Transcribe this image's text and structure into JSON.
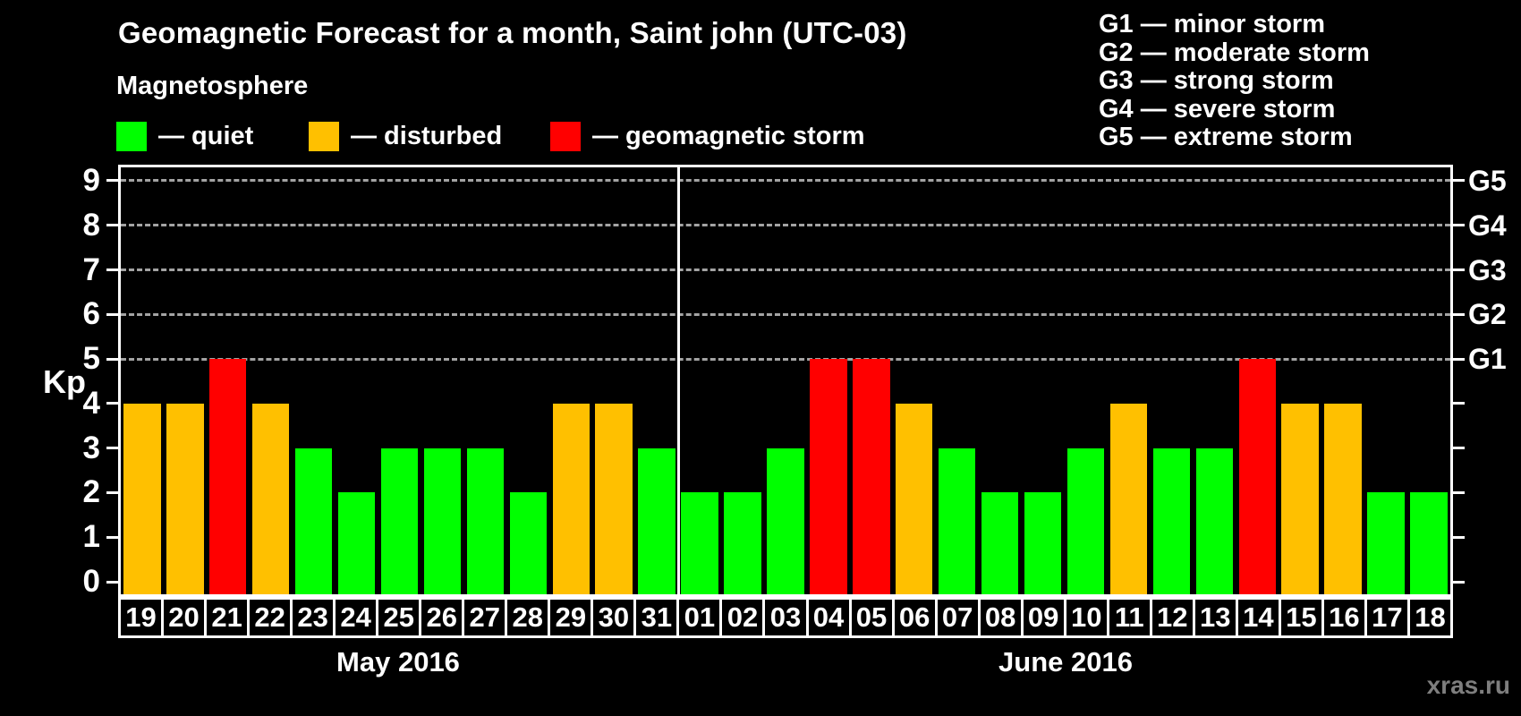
{
  "title": "Geomagnetic Forecast for a month, Saint john (UTC-03)",
  "subtitle": "Magnetosphere",
  "legend": {
    "items": [
      {
        "key": "quiet",
        "label": "— quiet",
        "color": "#00ff00"
      },
      {
        "key": "disturbed",
        "label": "— disturbed",
        "color": "#ffc000"
      },
      {
        "key": "storm",
        "label": "— geomagnetic storm",
        "color": "#ff0000"
      }
    ]
  },
  "g_legend": {
    "items": [
      {
        "code": "G1",
        "label": "minor storm"
      },
      {
        "code": "G2",
        "label": "moderate storm"
      },
      {
        "code": "G3",
        "label": "strong storm"
      },
      {
        "code": "G4",
        "label": "severe storm"
      },
      {
        "code": "G5",
        "label": "extreme storm"
      }
    ],
    "separator": "—"
  },
  "watermark": "xras.ru",
  "chart_data": {
    "type": "bar",
    "title": "Geomagnetic Forecast for a month, Saint john (UTC-03)",
    "ylabel": "Kp",
    "ylim": [
      0,
      9
    ],
    "y_ticks": [
      0,
      1,
      2,
      3,
      4,
      5,
      6,
      7,
      8,
      9
    ],
    "grid_levels": [
      5,
      6,
      7,
      8,
      9
    ],
    "grid_style": "dashed-gray-horizontal",
    "legend_position": "top",
    "right_axis_labels": [
      {
        "kp": 5,
        "label": "G1"
      },
      {
        "kp": 6,
        "label": "G2"
      },
      {
        "kp": 7,
        "label": "G3"
      },
      {
        "kp": 8,
        "label": "G4"
      },
      {
        "kp": 9,
        "label": "G5"
      }
    ],
    "color_rules": {
      "storm_min": 5,
      "disturbed_min": 4
    },
    "colors": {
      "quiet": "#00ff00",
      "disturbed": "#ffc000",
      "storm": "#ff0000"
    },
    "months": [
      {
        "label": "May 2016",
        "days": [
          "19",
          "20",
          "21",
          "22",
          "23",
          "24",
          "25",
          "26",
          "27",
          "28",
          "29",
          "30",
          "31"
        ],
        "values": [
          4,
          4,
          5,
          4,
          3,
          2,
          3,
          3,
          3,
          2,
          4,
          4,
          3
        ]
      },
      {
        "label": "June 2016",
        "days": [
          "01",
          "02",
          "03",
          "04",
          "05",
          "06",
          "07",
          "08",
          "09",
          "10",
          "11",
          "12",
          "13",
          "14",
          "15",
          "16",
          "17",
          "18"
        ],
        "values": [
          2,
          2,
          3,
          5,
          5,
          4,
          3,
          2,
          2,
          3,
          4,
          3,
          3,
          5,
          4,
          4,
          2,
          2
        ]
      }
    ]
  }
}
